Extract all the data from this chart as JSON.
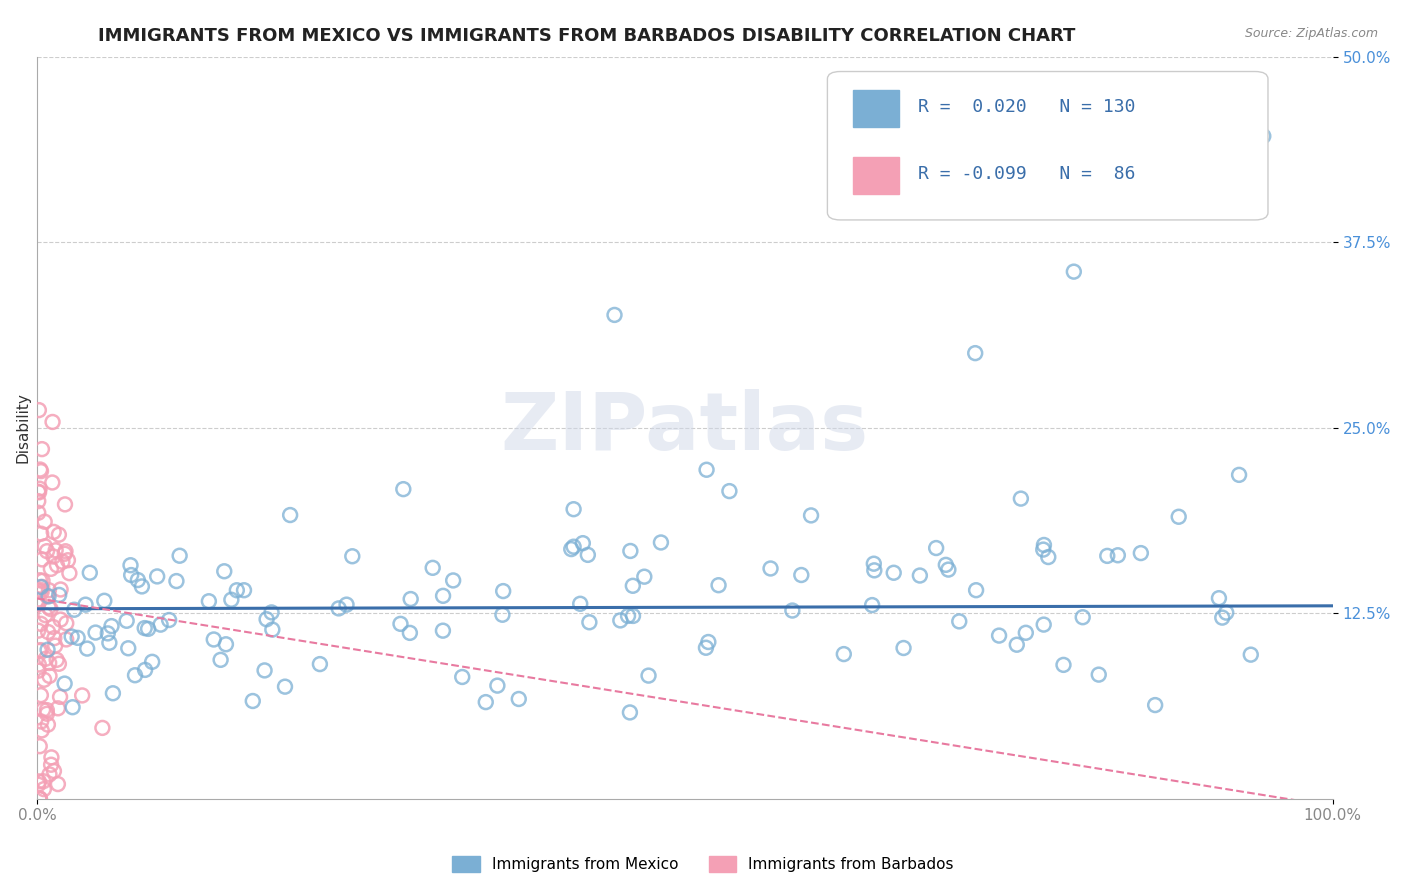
{
  "title": "IMMIGRANTS FROM MEXICO VS IMMIGRANTS FROM BARBADOS DISABILITY CORRELATION CHART",
  "source": "Source: ZipAtlas.com",
  "xlabel": "",
  "ylabel": "Disability",
  "xlim": [
    0.0,
    1.0
  ],
  "ylim": [
    0.0,
    0.5
  ],
  "yticks": [
    0.125,
    0.25,
    0.375,
    0.5
  ],
  "ytick_labels": [
    "12.5%",
    "25.0%",
    "37.5%",
    "50.0%"
  ],
  "xticks": [
    0.0,
    1.0
  ],
  "xtick_labels": [
    "0.0%",
    "100.0%"
  ],
  "mexico_R": 0.02,
  "mexico_N": 130,
  "barbados_R": -0.099,
  "barbados_N": 86,
  "mexico_color": "#7bafd4",
  "barbados_color": "#f4a0b5",
  "mexico_line_color": "#3a6eaa",
  "barbados_line_color": "#e87aa0",
  "grid_color": "#c8c8c8",
  "background_color": "#ffffff",
  "watermark": "ZIPatlas",
  "stat_color": "#3a6eaa",
  "tick_label_color": "#4a90d9",
  "title_fontsize": 13,
  "axis_label_fontsize": 11,
  "tick_fontsize": 11
}
